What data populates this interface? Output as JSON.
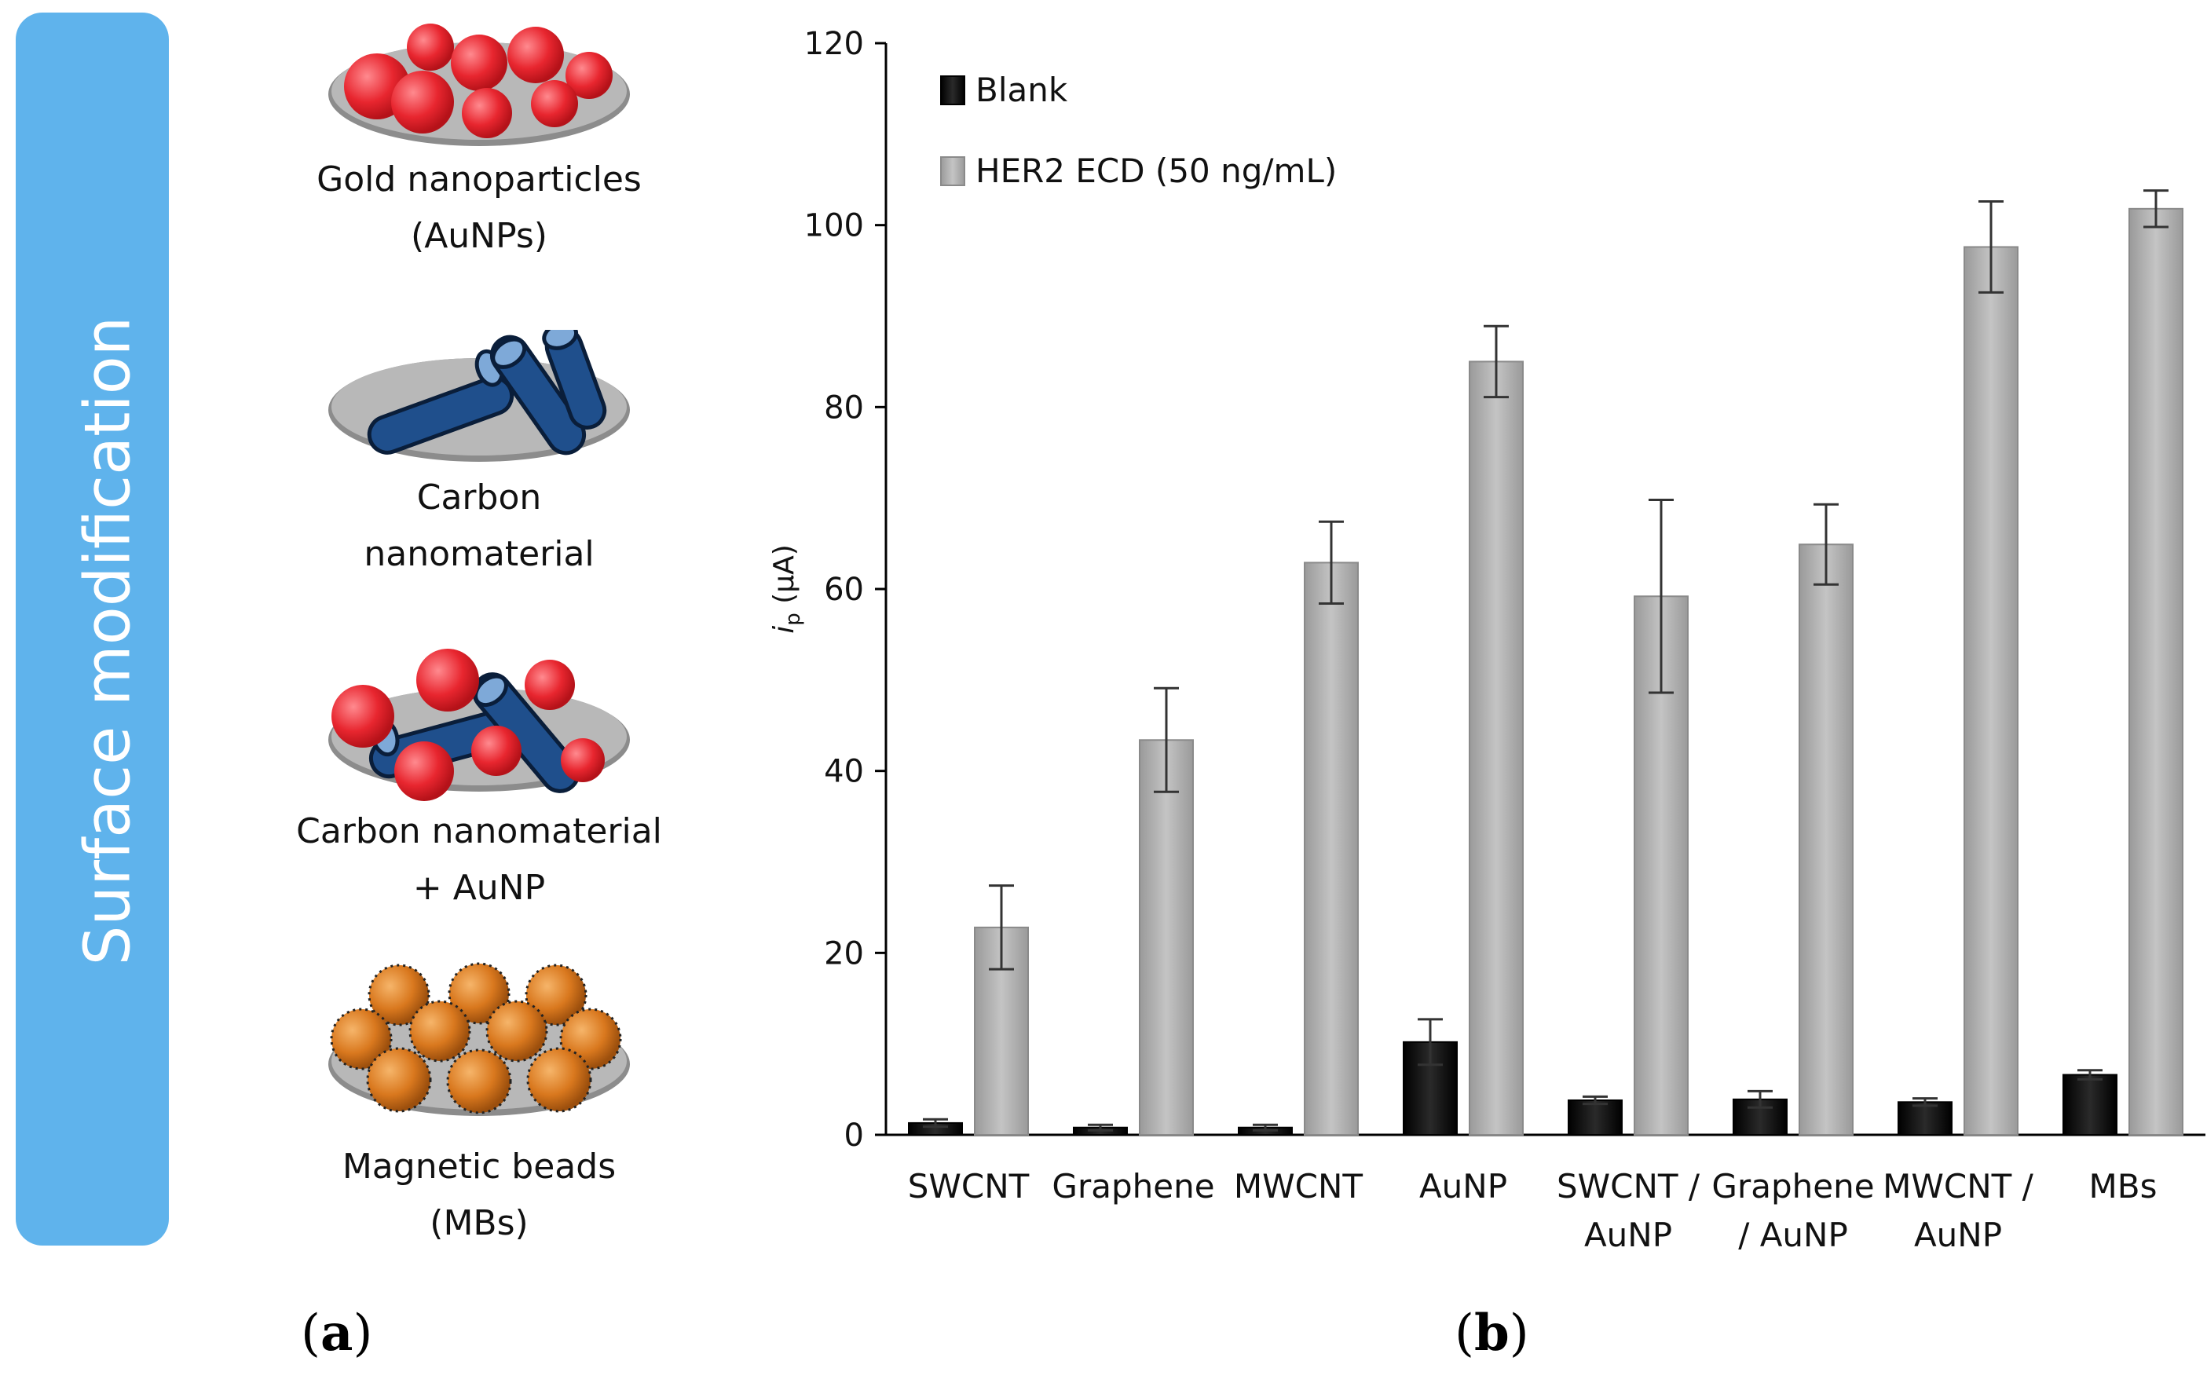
{
  "panel_a": {
    "banner_text": "Surface modification",
    "items": [
      {
        "line1": "Gold nanoparticles",
        "line2": "(AuNPs)"
      },
      {
        "line1": "Carbon",
        "line2": "nanomaterial"
      },
      {
        "line1": "Carbon nanomaterial",
        "line2": "+ AuNP"
      },
      {
        "line1": "Magnetic beads",
        "line2": "(MBs)"
      }
    ],
    "label_letter": "a"
  },
  "panel_b": {
    "label_letter": "b"
  },
  "colors": {
    "banner": "#5fb3ec",
    "gold": "#e8262f",
    "carbon": "#1f4f8c",
    "bead": "#d9781e",
    "blank_bar": "#050505",
    "her2_bar": "#b3b3b3"
  },
  "chart_data": {
    "type": "bar",
    "ylabel_main": "i",
    "ylabel_sub": "p",
    "ylabel_unit": " (µA)",
    "ylim": [
      0,
      120
    ],
    "yticks": [
      0,
      20,
      40,
      60,
      80,
      100,
      120
    ],
    "categories": [
      [
        "SWCNT"
      ],
      [
        "Graphene"
      ],
      [
        "MWCNT"
      ],
      [
        "AuNP"
      ],
      [
        "SWCNT /",
        "AuNP"
      ],
      [
        "Graphene",
        "/ AuNP"
      ],
      [
        "MWCNT /",
        "AuNP"
      ],
      [
        "MBs"
      ]
    ],
    "legend_position": "top-left",
    "series": [
      {
        "name": "Blank",
        "values": [
          1.3,
          0.8,
          0.8,
          10.2,
          3.8,
          3.9,
          3.6,
          6.6
        ],
        "errors": [
          0.4,
          0.3,
          0.3,
          2.5,
          0.4,
          0.9,
          0.4,
          0.5
        ]
      },
      {
        "name": "HER2 ECD (50 ng/mL)",
        "values": [
          22.8,
          43.4,
          62.9,
          85.0,
          59.2,
          64.9,
          97.6,
          101.8
        ],
        "errors": [
          4.6,
          5.7,
          4.5,
          3.9,
          10.6,
          4.4,
          5.0,
          2.0
        ]
      }
    ]
  }
}
